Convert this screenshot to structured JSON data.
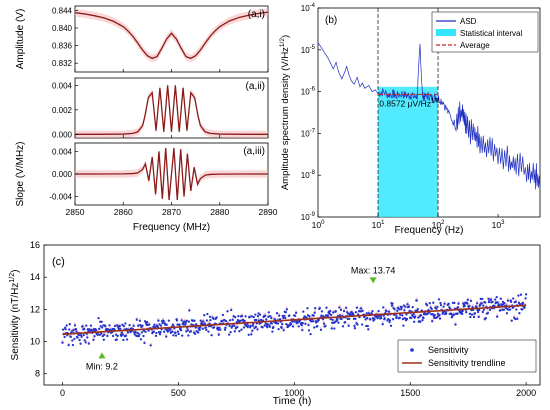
{
  "chart_data": [
    {
      "id": "a",
      "type": "line",
      "xlabel": "Frequency (MHz)",
      "xlim": [
        2850,
        2890
      ],
      "xticks": [
        "2850",
        "2860",
        "2870",
        "2880",
        "2890"
      ],
      "colors": {
        "line": "#8b1a1a",
        "band": "#f6b7b7"
      },
      "subplots": [
        {
          "id": "a-i",
          "panel_label": "(a,i)",
          "ylabel": "Amplitude (V)",
          "ylim": [
            0.83,
            0.845
          ],
          "yticks": [
            "0.832",
            "0.836",
            "0.840",
            "0.844"
          ],
          "series": [
            {
              "x": [
                2850,
                2852,
                2854,
                2856,
                2858,
                2860,
                2861,
                2862,
                2863,
                2864,
                2865,
                2866,
                2867,
                2868,
                2869,
                2870,
                2871,
                2872,
                2873,
                2874,
                2875,
                2876,
                2877,
                2878,
                2879,
                2880,
                2882,
                2884,
                2886,
                2888,
                2890
              ],
              "y": [
                0.8435,
                0.8432,
                0.8428,
                0.8423,
                0.8415,
                0.8403,
                0.8393,
                0.8381,
                0.8366,
                0.835,
                0.8337,
                0.8331,
                0.8335,
                0.8354,
                0.8375,
                0.8388,
                0.8375,
                0.8354,
                0.8335,
                0.8331,
                0.8337,
                0.835,
                0.8366,
                0.8381,
                0.8393,
                0.8403,
                0.8416,
                0.8424,
                0.8429,
                0.8433,
                0.8436
              ]
            }
          ]
        },
        {
          "id": "a-ii",
          "panel_label": "(a,ii)",
          "ylabel": "",
          "ylim": [
            -0.0003,
            0.0046
          ],
          "yticks": [
            "0.000",
            "0.002",
            "0.004"
          ],
          "series": [
            {
              "x": [
                2850,
                2855,
                2860,
                2862,
                2863,
                2864,
                2864.5,
                2865.2,
                2866,
                2866.8,
                2867.6,
                2868.4,
                2869.2,
                2870,
                2870.8,
                2871.6,
                2872.4,
                2873.2,
                2874,
                2874.8,
                2875.5,
                2876,
                2877,
                2878,
                2880,
                2885,
                2890
              ],
              "y": [
                0.0,
                0.0,
                2e-05,
                8e-05,
                0.0002,
                0.0007,
                0.0015,
                0.003,
                0.0034,
                0.0003,
                0.0038,
                0.0002,
                0.004,
                0.0002,
                0.004,
                0.0002,
                0.0038,
                0.0003,
                0.0034,
                0.003,
                0.0015,
                0.0007,
                0.0002,
                8e-05,
                2e-05,
                0.0,
                0.0
              ]
            }
          ]
        },
        {
          "id": "a-iii",
          "panel_label": "(a,iii)",
          "ylabel": "Slope (V/MHz)",
          "ylim": [
            -0.0055,
            0.0055
          ],
          "yticks": [
            "-0.004",
            "0.000",
            "0.004"
          ],
          "series": [
            {
              "x": [
                2850,
                2855,
                2860,
                2862,
                2863,
                2864,
                2864.6,
                2865.3,
                2866,
                2866.7,
                2867.4,
                2868.1,
                2868.8,
                2869.5,
                2870,
                2870.5,
                2871.2,
                2871.9,
                2872.6,
                2873.3,
                2874,
                2874.7,
                2875.4,
                2876,
                2877,
                2878,
                2880,
                2885,
                2890
              ],
              "y": [
                0.0,
                0.0,
                2e-05,
                8e-05,
                0.0002,
                0.0008,
                0.0018,
                -0.0012,
                0.003,
                -0.0036,
                0.004,
                -0.0044,
                0.0046,
                -0.0046,
                0.0,
                0.0046,
                -0.0046,
                0.0044,
                -0.004,
                0.0036,
                -0.003,
                0.0012,
                -0.0018,
                -0.0008,
                -0.0002,
                -8e-05,
                -2e-05,
                0.0,
                0.0
              ]
            }
          ]
        }
      ]
    },
    {
      "id": "b",
      "type": "line",
      "panel_label": "(b)",
      "xlabel": "Frequency (Hz)",
      "ylabel": "Amplitude spectrum density (V/Hz",
      "ylabel_sup": "1/2",
      "ylabel_close": ")",
      "x_scale": "log",
      "y_scale": "log",
      "xlim": [
        1,
        5000
      ],
      "ylim": [
        1e-09,
        0.0001
      ],
      "xticks": [
        {
          "value": 1,
          "base": "10",
          "exp": "0"
        },
        {
          "value": 10,
          "base": "10",
          "exp": "1"
        },
        {
          "value": 100,
          "base": "10",
          "exp": "2"
        },
        {
          "value": 1000,
          "base": "10",
          "exp": "3"
        }
      ],
      "yticks": [
        {
          "value": 1e-09,
          "base": "10",
          "exp": "-9"
        },
        {
          "value": 1e-08,
          "base": "10",
          "exp": "-8"
        },
        {
          "value": 1e-07,
          "base": "10",
          "exp": "-7"
        },
        {
          "value": 1e-06,
          "base": "10",
          "exp": "-6"
        },
        {
          "value": 1e-05,
          "base": "10",
          "exp": "-5"
        },
        {
          "value": 0.0001,
          "base": "10",
          "exp": "-4"
        }
      ],
      "statistical_interval": [
        10,
        100
      ],
      "average": 8.572e-07,
      "annotation": {
        "text": "0.8572 μV/Hz",
        "sup": "1/2"
      },
      "legend": {
        "position": "top-right",
        "items": [
          {
            "label": "ASD",
            "style": "line",
            "color": "#1f2fbf"
          },
          {
            "label": "Statistical interval",
            "style": "patch",
            "color": "#33e6ff"
          },
          {
            "label": "Average",
            "style": "dash",
            "color": "#d02020"
          }
        ]
      },
      "colors": {
        "asd": "#1f2fbf",
        "interval": "#33e6ff",
        "average": "#d02020",
        "bounds": "#222222"
      },
      "series": [
        {
          "name": "ASD",
          "x": [
            1,
            1.2,
            1.5,
            1.8,
            2,
            2.2,
            2.5,
            2.8,
            3,
            3.3,
            3.6,
            4,
            4.5,
            5,
            5.5,
            6,
            7,
            8,
            9,
            10,
            12,
            15,
            18,
            20,
            25,
            30,
            35,
            40,
            45,
            50,
            55,
            60,
            70,
            80,
            90,
            100,
            120,
            150,
            200,
            250,
            300,
            400,
            500,
            700,
            1000,
            1500,
            2000,
            3000,
            4000,
            5000
          ],
          "y": [
            1.5e-05,
            1e-05,
            6e-06,
            3.5e-06,
            5e-06,
            3e-06,
            2e-06,
            3e-06,
            4e-06,
            2.5e-06,
            1.8e-06,
            1.5e-06,
            2.2e-06,
            1.3e-06,
            1.6e-06,
            1.2e-06,
            1.4e-06,
            1e-06,
            1.1e-06,
            9e-07,
            1e-06,
            8.5e-07,
            9e-07,
            8e-07,
            9e-07,
            8e-07,
            8.5e-07,
            7.5e-07,
            8e-07,
            1.3e-05,
            8e-07,
            7.5e-07,
            8e-07,
            7e-07,
            7.5e-07,
            7e-07,
            6e-07,
            3e-07,
            1.5e-07,
            2e-07,
            8e-08,
            6e-08,
            4e-08,
            3e-08,
            2.2e-08,
            1.5e-08,
            1.2e-08,
            8e-09,
            6e-09,
            4.5e-09
          ]
        },
        {
          "name": "Average",
          "x": [
            10,
            100
          ],
          "y": [
            8.572e-07,
            8.572e-07
          ]
        }
      ]
    },
    {
      "id": "c",
      "type": "scatter",
      "panel_label": "(c)",
      "xlabel": "Time (h)",
      "ylabel": "Sensitivity (nT/Hz",
      "ylabel_sup": "1/2",
      "ylabel_close": ")",
      "xlim": [
        -80,
        2060
      ],
      "ylim": [
        7.3,
        16
      ],
      "xticks": [
        "0",
        "500",
        "1000",
        "1500",
        "2000"
      ],
      "yticks": [
        "8",
        "10",
        "12",
        "14",
        "16"
      ],
      "max": {
        "x": 1340,
        "y": 13.74,
        "label": "Max: 13.74"
      },
      "min": {
        "x": 170,
        "y": 9.2,
        "label": "Min: 9.2"
      },
      "legend": {
        "position": "bottom-right",
        "items": [
          {
            "label": "Sensitivity",
            "style": "dot",
            "color": "#2233cc"
          },
          {
            "label": "Sensitivity trendline",
            "style": "line",
            "color": "#a0301a"
          }
        ]
      },
      "colors": {
        "points": "#2233cc",
        "trend": "#a0301a",
        "marker": "#55bb22",
        "pink": "#e060a0"
      },
      "series": [
        {
          "name": "Sensitivity",
          "n_points": 900,
          "x_range": [
            0,
            2000
          ],
          "trend_start": 10.45,
          "trend_end": 12.25,
          "spread": 0.55
        },
        {
          "name": "Sensitivity trendline",
          "x": [
            0,
            500,
            1000,
            1500,
            2000
          ],
          "y": [
            10.45,
            10.9,
            11.35,
            11.8,
            12.25
          ]
        }
      ]
    }
  ]
}
